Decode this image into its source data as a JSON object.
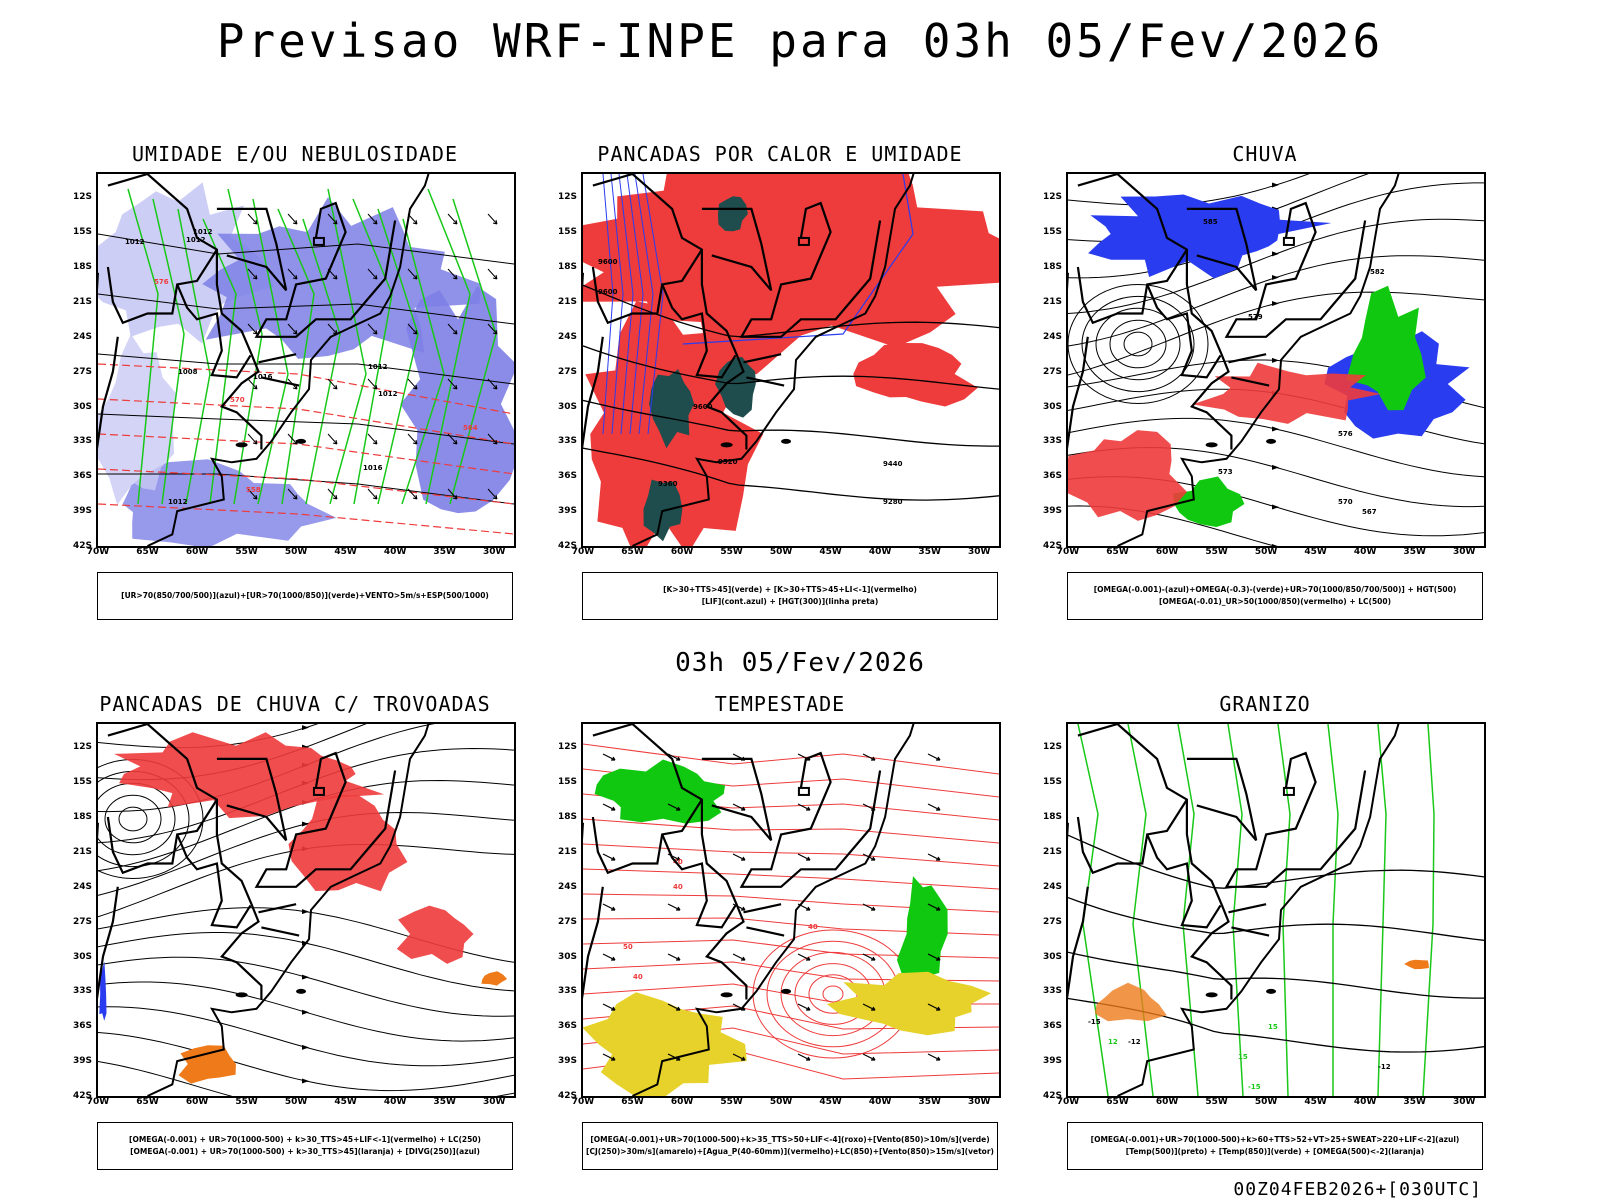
{
  "main_title": "Previsao WRF-INPE  para 03h 05/Fev/2026",
  "mid_time": "03h 05/Fev/2026",
  "footer_stamp": "00Z04FEB2026+[030UTC]",
  "axes": {
    "lat_ticks": [
      "12S",
      "15S",
      "18S",
      "21S",
      "24S",
      "27S",
      "30S",
      "33S",
      "36S",
      "39S",
      "42S"
    ],
    "lon_ticks": [
      "70W",
      "65W",
      "60W",
      "55W",
      "50W",
      "45W",
      "40W",
      "35W",
      "30W"
    ],
    "lat_range": [
      -42,
      -10
    ],
    "lon_range": [
      -70,
      -28
    ]
  },
  "colors": {
    "blue_fill": "#7d7fe6",
    "light_blue_fill": "#c8c9f4",
    "red_fill": "#ee3b3b",
    "green_line": "#19c819",
    "green_fill": "#10c810",
    "dark_teal": "#1f4d4d",
    "yellow_fill": "#e6d22a",
    "orange": "#ee7a1a",
    "blue_contour": "#2a3cf0"
  },
  "panels": [
    {
      "id": "umidade",
      "title": "UMIDADE E/OU NEBULOSIDADE",
      "legend": [
        "[UR>70(850/700/500)](azul)+[UR>70(1000/850)](verde)+VENTO>5m/s+ESP(500/1000)"
      ],
      "contour_labels": [
        "1012",
        "1012",
        "1016",
        "1012",
        "1012",
        "1008",
        "1012",
        "1016",
        "1012",
        "576",
        "570",
        "564",
        "558"
      ]
    },
    {
      "id": "pancadas_calor",
      "title": "PANCADAS POR CALOR E UMIDADE",
      "legend": [
        "[K>30+TTS>45](verde) + [K>30+TTS>45+LI<-1](vermelho)",
        "[LIF](cont.azul) + [HGT(300)](linha preta)"
      ],
      "contour_labels": [
        "9600",
        "9600",
        "9600",
        "9520",
        "9440",
        "9360",
        "9280"
      ]
    },
    {
      "id": "chuva",
      "title": "CHUVA",
      "legend": [
        "[OMEGA(-0.001)-(azul)+OMEGA(-0.3)-(verde)+UR>70(1000/850/700/500)] + HGT(500)",
        "[OMEGA(-0.01)_UR>50(1000/850)(vermelho) + LC(500)"
      ],
      "contour_labels": [
        "585",
        "582",
        "579",
        "576",
        "573",
        "570",
        "567"
      ]
    },
    {
      "id": "trovoadas",
      "title": "PANCADAS DE CHUVA C/ TROVOADAS",
      "legend": [
        "[OMEGA(-0.001) + UR>70(1000-500) + k>30_TTS>45+LIF<-1](vermelho) + LC(250)",
        "[OMEGA(-0.001) + UR>70(1000-500) + k>30_TTS>45](laranja) + [DIVG(250)](azul)"
      ],
      "contour_labels": []
    },
    {
      "id": "tempestade",
      "title": "TEMPESTADE",
      "legend": [
        "[OMEGA(-0.001)+UR>70(1000-500)+k>35_TTS>50+LIF<-4](roxo)+[Vento(850)>10m/s](verde)",
        "[CJ(250)>30m/s](amarelo)+[Agua_P(40-60mm)](vermelho)+LC(850)+[Vento(850)>15m/s](vetor)"
      ],
      "contour_labels": [
        "40",
        "40",
        "50",
        "40",
        "40"
      ]
    },
    {
      "id": "granizo",
      "title": "GRANIZO",
      "legend": [
        "[OMEGA(-0.001)+UR>70(1000-500)+k>60+TTS>52+VT>25+SWEAT>220+LIF<-2](azul)",
        "[Temp(500)](preto) + [Temp(850)](verde) + [OMEGA(500)<-2](laranja)"
      ],
      "contour_labels": [
        "-15",
        "-12",
        "-12",
        "15",
        "15",
        "-15",
        "12"
      ]
    }
  ]
}
